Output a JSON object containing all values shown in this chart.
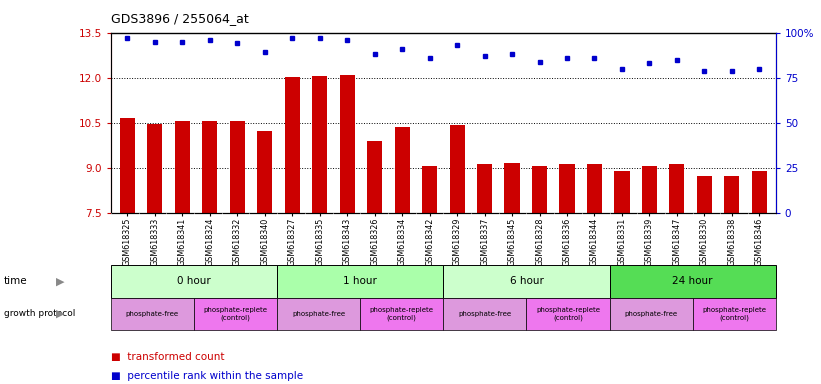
{
  "title": "GDS3896 / 255064_at",
  "samples": [
    "GSM618325",
    "GSM618333",
    "GSM618341",
    "GSM618324",
    "GSM618332",
    "GSM618340",
    "GSM618327",
    "GSM618335",
    "GSM618343",
    "GSM618326",
    "GSM618334",
    "GSM618342",
    "GSM618329",
    "GSM618337",
    "GSM618345",
    "GSM618328",
    "GSM618336",
    "GSM618344",
    "GSM618331",
    "GSM618339",
    "GSM618347",
    "GSM618330",
    "GSM618338",
    "GSM618346"
  ],
  "bar_values": [
    10.65,
    10.47,
    10.55,
    10.57,
    10.56,
    10.22,
    12.02,
    12.07,
    12.08,
    9.9,
    10.35,
    9.07,
    10.42,
    9.13,
    9.17,
    9.08,
    9.12,
    9.14,
    8.9,
    9.05,
    9.14,
    8.75,
    8.72,
    8.9
  ],
  "percentile_values": [
    97,
    95,
    95,
    96,
    94,
    89,
    97,
    97,
    96,
    88,
    91,
    86,
    93,
    87,
    88,
    84,
    86,
    86,
    80,
    83,
    85,
    79,
    79,
    80
  ],
  "ylim_left": [
    7.5,
    13.5
  ],
  "ylim_right": [
    0,
    100
  ],
  "yticks_left": [
    7.5,
    9.0,
    10.5,
    12.0,
    13.5
  ],
  "yticks_right": [
    0,
    25,
    50,
    75,
    100
  ],
  "ytick_labels_right": [
    "0",
    "25",
    "50",
    "75",
    "100%"
  ],
  "bar_color": "#cc0000",
  "dot_color": "#0000cc",
  "time_groups": [
    {
      "label": "0 hour",
      "start": 0,
      "end": 6,
      "color": "#ccffcc"
    },
    {
      "label": "1 hour",
      "start": 6,
      "end": 12,
      "color": "#aaffaa"
    },
    {
      "label": "6 hour",
      "start": 12,
      "end": 18,
      "color": "#ccffcc"
    },
    {
      "label": "24 hour",
      "start": 18,
      "end": 24,
      "color": "#55dd55"
    }
  ],
  "protocol_groups": [
    {
      "label": "phosphate-free",
      "start": 0,
      "end": 3,
      "color": "#dd99dd"
    },
    {
      "label": "phosphate-replete\n(control)",
      "start": 3,
      "end": 6,
      "color": "#ee77ee"
    },
    {
      "label": "phosphate-free",
      "start": 6,
      "end": 9,
      "color": "#dd99dd"
    },
    {
      "label": "phosphate-replete\n(control)",
      "start": 9,
      "end": 12,
      "color": "#ee77ee"
    },
    {
      "label": "phosphate-free",
      "start": 12,
      "end": 15,
      "color": "#dd99dd"
    },
    {
      "label": "phosphate-replete\n(control)",
      "start": 15,
      "end": 18,
      "color": "#ee77ee"
    },
    {
      "label": "phosphate-free",
      "start": 18,
      "end": 21,
      "color": "#dd99dd"
    },
    {
      "label": "phosphate-replete\n(control)",
      "start": 21,
      "end": 24,
      "color": "#ee77ee"
    }
  ],
  "legend_bar_label": "transformed count",
  "legend_dot_label": "percentile rank within the sample",
  "time_label": "time",
  "protocol_label": "growth protocol",
  "grid_values": [
    9.0,
    10.5,
    12.0
  ],
  "background_color": "#ffffff",
  "tick_label_color_left": "#cc0000",
  "tick_label_color_right": "#0000cc",
  "xticklabel_bg": "#dddddd"
}
